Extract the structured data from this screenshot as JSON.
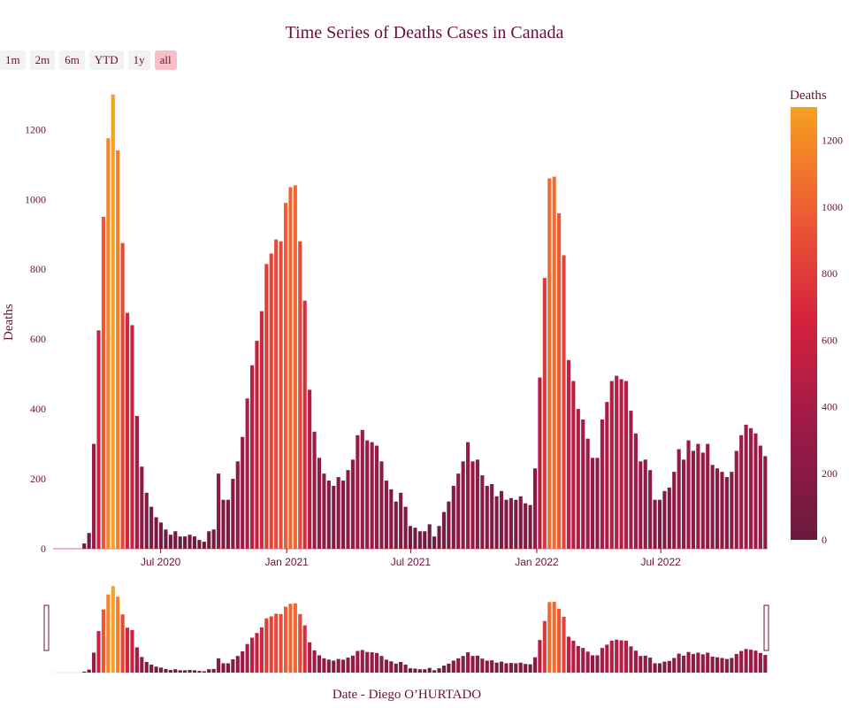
{
  "title": "Time Series of Deaths Cases in Canada",
  "range_selector": [
    {
      "label": "1m",
      "active": false
    },
    {
      "label": "2m",
      "active": false
    },
    {
      "label": "6m",
      "active": false
    },
    {
      "label": "YTD",
      "active": false
    },
    {
      "label": "1y",
      "active": false
    },
    {
      "label": "all",
      "active": true
    }
  ],
  "colors": {
    "text": "#6b0f3a",
    "colorscale": [
      "#6b1a3e",
      "#9b1a48",
      "#d4213e",
      "#ee5a34",
      "#f6a020"
    ]
  },
  "chart_data": {
    "type": "bar",
    "title": "Time Series of Deaths Cases in Canada",
    "xlabel": "Date - Diego O’HURTADO",
    "ylabel": "Deaths",
    "x_start": "2020-01-26",
    "x_frequency": "weekly",
    "x_ticks": [
      "Jul 2020",
      "Jan 2021",
      "Jul 2021",
      "Jan 2022",
      "Jul 2022"
    ],
    "y_ticks": [
      0,
      200,
      400,
      600,
      800,
      1000,
      1200
    ],
    "ylim": [
      0,
      1330
    ],
    "colorbar": {
      "title": "Deaths",
      "ticks": [
        0,
        200,
        400,
        600,
        800,
        1000,
        1200
      ],
      "range": [
        0,
        1300
      ]
    },
    "range_slider": true,
    "grid": false,
    "values": [
      0,
      0,
      0,
      0,
      0,
      0,
      15,
      45,
      300,
      625,
      950,
      1175,
      1300,
      1140,
      875,
      675,
      640,
      380,
      235,
      160,
      120,
      90,
      75,
      55,
      40,
      50,
      35,
      35,
      40,
      35,
      25,
      20,
      50,
      55,
      215,
      140,
      140,
      200,
      250,
      320,
      430,
      525,
      595,
      680,
      815,
      845,
      885,
      880,
      990,
      1035,
      1040,
      880,
      710,
      455,
      335,
      260,
      215,
      195,
      180,
      205,
      195,
      225,
      255,
      325,
      340,
      310,
      305,
      295,
      250,
      195,
      170,
      135,
      160,
      120,
      65,
      60,
      50,
      50,
      70,
      35,
      65,
      105,
      135,
      180,
      215,
      250,
      305,
      250,
      255,
      210,
      180,
      185,
      150,
      165,
      140,
      145,
      140,
      150,
      130,
      125,
      230,
      490,
      775,
      1060,
      1065,
      960,
      840,
      540,
      480,
      400,
      370,
      315,
      260,
      260,
      370,
      420,
      480,
      495,
      485,
      480,
      395,
      330,
      250,
      255,
      225,
      140,
      140,
      165,
      175,
      220,
      285,
      255,
      310,
      280,
      300,
      275,
      300,
      240,
      230,
      220,
      205,
      220,
      280,
      325,
      355,
      345,
      330,
      295,
      265
    ]
  }
}
